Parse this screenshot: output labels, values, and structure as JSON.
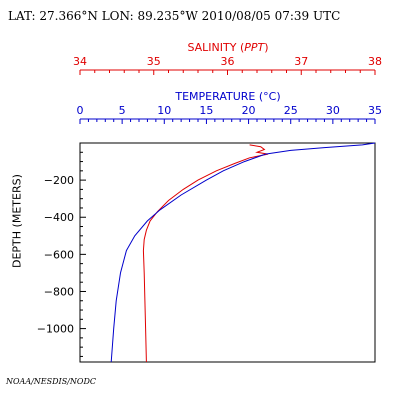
{
  "header": {
    "title": "LAT: 27.366°N LON: 89.235°W 2010/08/05 07:39 UTC"
  },
  "credit": "NOAA/NESDIS/NODC",
  "colors": {
    "salinity": "#e00000",
    "temperature": "#0000cc",
    "axis": "#000000"
  },
  "chart_data": {
    "type": "line",
    "ylabel": "DEPTH (METERS)",
    "ylim": [
      0,
      -1180
    ],
    "yticks": [
      -200,
      -400,
      -600,
      -800,
      -1000
    ],
    "ytick_labels": [
      "−200",
      "−400",
      "−600",
      "−800",
      "−1000"
    ],
    "salinity_axis": {
      "label_prefix": "SALINITY (",
      "label_unit": "PPT",
      "label_suffix": ")",
      "range": [
        34,
        38
      ],
      "ticks": [
        34,
        35,
        36,
        37,
        38
      ],
      "tick_labels": [
        "34",
        "35",
        "36",
        "37",
        "38"
      ]
    },
    "temperature_axis": {
      "label_prefix": "TEMPERATURE (",
      "label_unit": "°C",
      "label_suffix": ")",
      "range": [
        0,
        35
      ],
      "ticks": [
        0,
        5,
        10,
        15,
        20,
        25,
        30,
        35
      ],
      "tick_labels": [
        "0",
        "5",
        "10",
        "15",
        "20",
        "25",
        "30",
        "35"
      ]
    },
    "series": [
      {
        "kind": "salinity",
        "color": "#e00000",
        "points": [
          [
            36.3,
            -10
          ],
          [
            36.45,
            -20
          ],
          [
            36.5,
            -35
          ],
          [
            36.4,
            -50
          ],
          [
            36.55,
            -60
          ],
          [
            36.3,
            -80
          ],
          [
            36.1,
            -110
          ],
          [
            35.85,
            -150
          ],
          [
            35.6,
            -200
          ],
          [
            35.4,
            -250
          ],
          [
            35.2,
            -310
          ],
          [
            35.05,
            -370
          ],
          [
            34.95,
            -420
          ],
          [
            34.9,
            -470
          ],
          [
            34.87,
            -520
          ],
          [
            34.86,
            -580
          ],
          [
            34.87,
            -700
          ],
          [
            34.88,
            -850
          ],
          [
            34.89,
            -1000
          ],
          [
            34.9,
            -1180
          ]
        ]
      },
      {
        "kind": "temperature",
        "color": "#0000cc",
        "points": [
          [
            35.0,
            0
          ],
          [
            33.5,
            -10
          ],
          [
            29.0,
            -25
          ],
          [
            25.0,
            -40
          ],
          [
            22.0,
            -60
          ],
          [
            19.5,
            -100
          ],
          [
            17.0,
            -150
          ],
          [
            15.0,
            -200
          ],
          [
            12.0,
            -280
          ],
          [
            9.5,
            -360
          ],
          [
            8.0,
            -420
          ],
          [
            6.5,
            -500
          ],
          [
            5.5,
            -580
          ],
          [
            4.8,
            -700
          ],
          [
            4.3,
            -850
          ],
          [
            4.0,
            -1000
          ],
          [
            3.7,
            -1180
          ]
        ]
      }
    ]
  }
}
